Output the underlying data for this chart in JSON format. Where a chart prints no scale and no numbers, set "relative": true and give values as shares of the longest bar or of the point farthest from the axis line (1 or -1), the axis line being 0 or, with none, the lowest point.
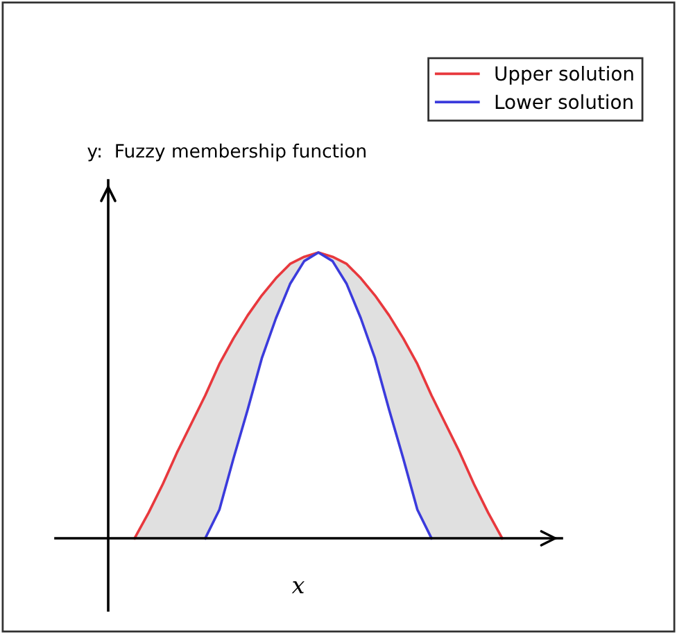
{
  "chart_data": {
    "type": "line",
    "relative": true,
    "xlabel": "x",
    "ylabel": "y:  Fuzzy membership function",
    "legend": "top right",
    "grid": false,
    "categories": [
      null,
      null,
      null,
      null,
      null,
      null,
      null,
      null,
      null,
      null,
      null,
      null,
      null,
      null,
      null,
      null,
      null,
      null,
      null,
      null,
      null,
      null,
      null,
      null,
      null,
      null,
      null
    ],
    "series": [
      {
        "name": "Upper solution",
        "color": "#e8383d",
        "values": [
          0,
          0.09,
          0.19,
          0.3,
          0.4,
          0.5,
          0.61,
          0.7,
          0.78,
          0.85,
          0.91,
          0.96,
          0.985,
          1,
          0.985,
          0.96,
          0.91,
          0.85,
          0.78,
          0.7,
          0.61,
          0.5,
          0.4,
          0.3,
          0.19,
          0.09,
          0
        ],
        "lower": [
          0,
          0,
          0,
          0,
          0,
          0,
          0.1,
          0.28,
          0.45,
          0.63,
          0.77,
          0.89,
          0.97,
          1,
          0.97,
          0.89,
          0.77,
          0.63,
          0.45,
          0.28,
          0.1,
          0,
          0,
          0,
          0,
          0,
          0
        ],
        "upper": [
          0,
          0.09,
          0.19,
          0.3,
          0.4,
          0.5,
          0.61,
          0.7,
          0.78,
          0.85,
          0.91,
          0.96,
          0.985,
          1,
          0.985,
          0.96,
          0.91,
          0.85,
          0.78,
          0.7,
          0.61,
          0.5,
          0.4,
          0.3,
          0.19,
          0.09,
          0
        ]
      },
      {
        "name": "Lower solution",
        "color": "#3b3bdc",
        "values": [
          null,
          null,
          null,
          null,
          null,
          0,
          0.1,
          0.28,
          0.45,
          0.63,
          0.77,
          0.89,
          0.97,
          1,
          0.97,
          0.89,
          0.77,
          0.63,
          0.45,
          0.28,
          0.1,
          0,
          null,
          null,
          null,
          null,
          null
        ]
      }
    ]
  }
}
